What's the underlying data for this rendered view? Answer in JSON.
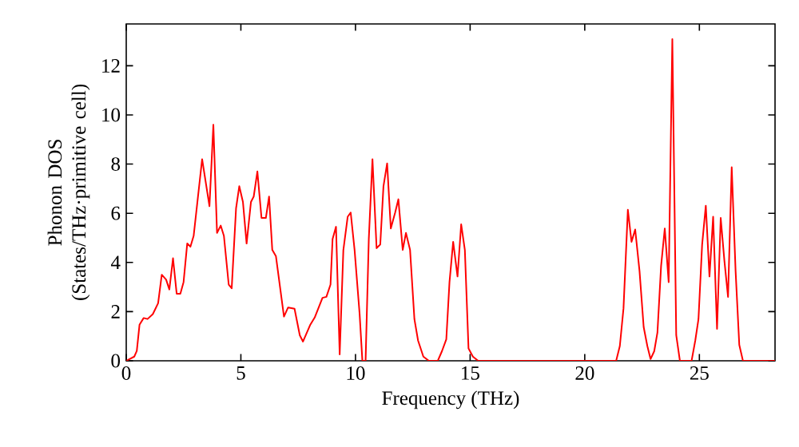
{
  "chart_data": {
    "type": "line",
    "xlabel": "Frequency (THz)",
    "ylabel": "Phonon DOS (States/THz·primitive cell)",
    "xlim": [
      0,
      28.3
    ],
    "ylim": [
      0,
      13.7
    ],
    "xticks": [
      0,
      5,
      10,
      15,
      20,
      25
    ],
    "yticks": [
      0,
      2,
      4,
      6,
      8,
      10,
      12
    ],
    "marker": "none",
    "line_style": "solid",
    "series": [
      {
        "color": "#ff0000",
        "x": [
          0,
          0.35,
          0.46,
          0.58,
          0.76,
          0.93,
          1.16,
          1.39,
          1.55,
          1.74,
          1.88,
          2.04,
          2.2,
          2.36,
          2.5,
          2.66,
          2.8,
          2.94,
          3.31,
          3.63,
          3.8,
          3.96,
          4.12,
          4.26,
          4.47,
          4.6,
          4.79,
          4.93,
          5.09,
          5.25,
          5.44,
          5.56,
          5.72,
          5.9,
          6.09,
          6.23,
          6.37,
          6.53,
          6.88,
          7.06,
          7.34,
          7.57,
          7.71,
          8.03,
          8.22,
          8.56,
          8.73,
          8.91,
          9.0,
          9.15,
          9.31,
          9.47,
          9.66,
          9.79,
          9.96,
          10.18,
          10.3,
          10.44,
          10.58,
          10.74,
          10.92,
          11.08,
          11.22,
          11.38,
          11.54,
          11.73,
          11.87,
          12.06,
          12.2,
          12.38,
          12.57,
          12.73,
          12.96,
          13.2,
          13.59,
          13.77,
          13.96,
          14.1,
          14.26,
          14.45,
          14.61,
          14.77,
          14.93,
          15.12,
          15.35,
          21.37,
          21.53,
          21.69,
          21.88,
          22.04,
          22.2,
          22.39,
          22.57,
          22.73,
          22.87,
          23.03,
          23.17,
          23.33,
          23.49,
          23.66,
          23.82,
          23.99,
          24.15,
          24.66,
          24.82,
          24.96,
          25.12,
          25.28,
          25.44,
          25.6,
          25.77,
          25.93,
          26.09,
          26.25,
          26.41,
          26.58,
          26.74,
          26.9,
          28.3
        ],
        "values": [
          0,
          0.17,
          0.4,
          1.47,
          1.74,
          1.7,
          1.9,
          2.34,
          3.5,
          3.3,
          2.9,
          4.17,
          2.73,
          2.73,
          3.2,
          4.77,
          4.64,
          5.08,
          8.2,
          6.29,
          9.6,
          5.2,
          5.5,
          5.08,
          3.1,
          2.95,
          6.2,
          7.1,
          6.46,
          4.77,
          6.46,
          6.68,
          7.7,
          5.81,
          5.81,
          6.68,
          4.51,
          4.25,
          1.8,
          2.17,
          2.12,
          1.04,
          0.78,
          1.47,
          1.76,
          2.56,
          2.6,
          3.1,
          4.95,
          5.45,
          0.26,
          4.5,
          5.86,
          6.03,
          4.51,
          1.9,
          0,
          0,
          4.95,
          8.2,
          4.58,
          4.73,
          7.1,
          8.03,
          5.38,
          6.03,
          6.57,
          4.51,
          5.2,
          4.51,
          1.69,
          0.82,
          0.17,
          0,
          0,
          0.39,
          0.87,
          3.2,
          4.84,
          3.43,
          5.55,
          4.51,
          0.5,
          0.17,
          0,
          0,
          0.6,
          2.13,
          6.14,
          4.84,
          5.34,
          3.64,
          1.37,
          0.6,
          0.07,
          0.39,
          1.15,
          3.86,
          5.38,
          3.2,
          13.08,
          1.04,
          0,
          0,
          0.82,
          1.69,
          4.73,
          6.31,
          3.43,
          5.86,
          1.3,
          5.81,
          4.08,
          2.6,
          7.87,
          3.64,
          0.65,
          0,
          0
        ]
      }
    ]
  }
}
